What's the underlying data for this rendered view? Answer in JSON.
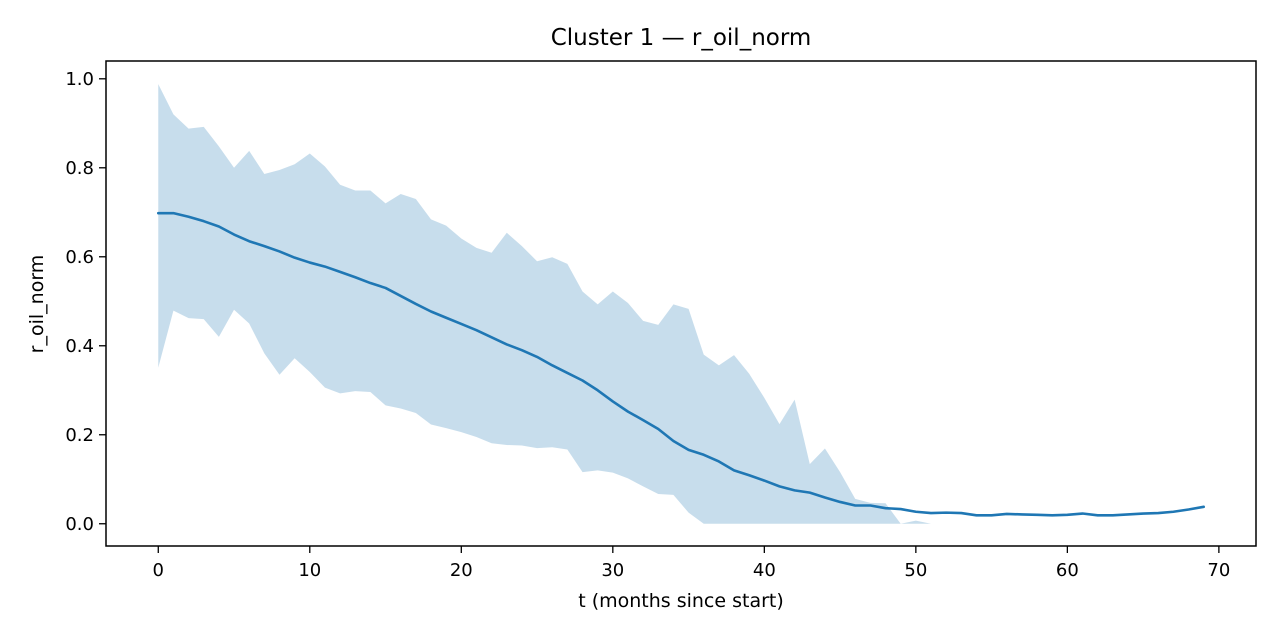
{
  "chart_data": {
    "type": "line",
    "title": "Cluster 1 — r_oil_norm",
    "xlabel": "t (months since start)",
    "ylabel": "r_oil_norm",
    "xlim": [
      -3.45,
      72.45
    ],
    "ylim": [
      -0.05,
      1.04
    ],
    "x_ticks": [
      0,
      10,
      20,
      30,
      40,
      50,
      60,
      70
    ],
    "x_tick_labels": [
      "0",
      "10",
      "20",
      "30",
      "40",
      "50",
      "60",
      "70"
    ],
    "y_ticks": [
      0.0,
      0.2,
      0.4,
      0.6,
      0.8,
      1.0
    ],
    "y_tick_labels": [
      "0.0",
      "0.2",
      "0.4",
      "0.6",
      "0.8",
      "1.0"
    ],
    "grid": false,
    "colors": {
      "line": "#1f77b4",
      "band": "#1f77b4",
      "band_opacity": 0.25
    },
    "series": [
      {
        "kind": "mean-line",
        "x": [
          0,
          1,
          2,
          3,
          4,
          5,
          6,
          7,
          8,
          9,
          10,
          11,
          12,
          13,
          14,
          15,
          16,
          17,
          18,
          19,
          20,
          21,
          22,
          23,
          24,
          25,
          26,
          27,
          28,
          29,
          30,
          31,
          32,
          33,
          34,
          35,
          36,
          37,
          38,
          39,
          40,
          41,
          42,
          43,
          44,
          45,
          46,
          47,
          48,
          49,
          50,
          51,
          52,
          53,
          54,
          55,
          56,
          57,
          58,
          59,
          60,
          61,
          62,
          63,
          64,
          65,
          66,
          67,
          68,
          69
        ],
        "values": [
          0.698,
          0.698,
          0.69,
          0.68,
          0.668,
          0.65,
          0.635,
          0.624,
          0.612,
          0.598,
          0.587,
          0.578,
          0.566,
          0.554,
          0.541,
          0.53,
          0.512,
          0.494,
          0.477,
          0.463,
          0.449,
          0.435,
          0.419,
          0.403,
          0.39,
          0.375,
          0.356,
          0.339,
          0.322,
          0.3,
          0.275,
          0.252,
          0.233,
          0.213,
          0.186,
          0.166,
          0.155,
          0.14,
          0.12,
          0.109,
          0.097,
          0.084,
          0.075,
          0.07,
          0.059,
          0.049,
          0.041,
          0.041,
          0.035,
          0.033,
          0.027,
          0.024,
          0.025,
          0.024,
          0.019,
          0.019,
          0.022,
          0.021,
          0.02,
          0.019,
          0.02,
          0.023,
          0.019,
          0.019,
          0.021,
          0.023,
          0.024,
          0.027,
          0.032,
          0.038
        ]
      },
      {
        "kind": "band",
        "x": [
          0,
          1,
          2,
          3,
          4,
          5,
          6,
          7,
          8,
          9,
          10,
          11,
          12,
          13,
          14,
          15,
          16,
          17,
          18,
          19,
          20,
          21,
          22,
          23,
          24,
          25,
          26,
          27,
          28,
          29,
          30,
          31,
          32,
          33,
          34,
          35,
          36,
          37,
          38,
          39,
          40,
          41,
          42,
          43,
          44,
          45,
          46,
          47,
          48,
          49,
          50,
          51,
          52,
          53,
          54,
          55,
          56,
          57,
          58,
          59,
          60,
          61,
          62,
          63,
          64,
          65,
          66,
          67,
          68,
          69
        ],
        "upper": [
          0.988,
          0.92,
          0.888,
          0.892,
          0.848,
          0.8,
          0.838,
          0.786,
          0.795,
          0.808,
          0.832,
          0.803,
          0.762,
          0.749,
          0.749,
          0.72,
          0.741,
          0.73,
          0.684,
          0.67,
          0.641,
          0.62,
          0.609,
          0.654,
          0.624,
          0.59,
          0.599,
          0.584,
          0.522,
          0.493,
          0.522,
          0.496,
          0.456,
          0.447,
          0.493,
          0.483,
          0.38,
          0.356,
          0.379,
          0.337,
          0.283,
          0.224,
          0.279,
          0.134,
          0.169,
          0.116,
          0.056,
          0.047,
          0.046,
          0.0,
          0.007,
          0.0,
          0.0,
          0.0,
          0.0,
          0.0,
          0.0,
          0.0,
          0.0,
          0.0,
          0.0,
          0.0,
          0.0,
          0.0,
          0.0,
          0.0,
          0.0,
          0.0,
          0.0,
          0.0
        ],
        "lower": [
          0.351,
          0.479,
          0.462,
          0.46,
          0.42,
          0.481,
          0.45,
          0.383,
          0.335,
          0.372,
          0.341,
          0.306,
          0.293,
          0.298,
          0.296,
          0.266,
          0.259,
          0.249,
          0.223,
          0.215,
          0.206,
          0.195,
          0.181,
          0.177,
          0.176,
          0.17,
          0.172,
          0.167,
          0.116,
          0.12,
          0.115,
          0.102,
          0.084,
          0.067,
          0.065,
          0.025,
          0.0,
          0.0,
          0.0,
          0.0,
          0.0,
          0.0,
          0.0,
          0.0,
          0.0,
          0.0,
          0.0,
          0.0,
          0.0,
          0.0,
          0.0,
          0.0,
          0.0,
          0.0,
          0.0,
          0.0,
          0.0,
          0.0,
          0.0,
          0.0,
          0.0,
          0.0,
          0.0,
          0.0,
          0.0,
          0.0,
          0.0,
          0.0,
          0.0,
          0.0
        ]
      }
    ]
  }
}
